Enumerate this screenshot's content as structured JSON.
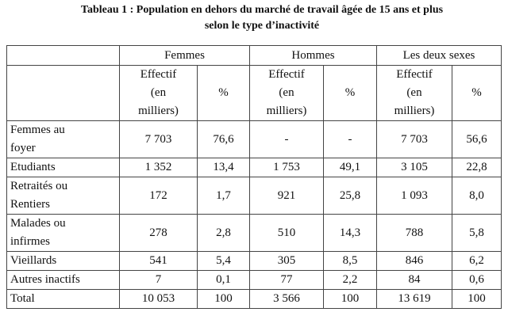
{
  "title": {
    "line1": "Tableau 1 : Population en dehors du marché de travail âgée de 15 ans et plus",
    "line2": "selon le type d’inactivité"
  },
  "groups": [
    "Femmes",
    "Hommes",
    "Les deux sexes"
  ],
  "subheaders": {
    "effectif": [
      "Effectif",
      "(en",
      "milliers)"
    ],
    "percent": "%"
  },
  "rows": [
    {
      "label": [
        "Femmes au",
        "foyer"
      ],
      "values": [
        "7 703",
        "76,6",
        "-",
        "-",
        "7 703",
        "56,6"
      ]
    },
    {
      "label": [
        "Etudiants"
      ],
      "values": [
        "1 352",
        "13,4",
        "1 753",
        "49,1",
        "3 105",
        "22,8"
      ]
    },
    {
      "label": [
        "Retraités ou",
        "Rentiers"
      ],
      "values": [
        "172",
        "1,7",
        "921",
        "25,8",
        "1 093",
        "8,0"
      ]
    },
    {
      "label": [
        "Malades ou",
        "infirmes"
      ],
      "values": [
        "278",
        "2,8",
        "510",
        "14,3",
        "788",
        "5,8"
      ]
    },
    {
      "label": [
        "Vieillards"
      ],
      "values": [
        "541",
        "5,4",
        "305",
        "8,5",
        "846",
        "6,2"
      ]
    },
    {
      "label": [
        "Autres inactifs"
      ],
      "values": [
        "7",
        "0,1",
        "77",
        "2,2",
        "84",
        "0,6"
      ]
    },
    {
      "label": [
        "Total"
      ],
      "values": [
        "10 053",
        "100",
        "3 566",
        "100",
        "13 619",
        "100"
      ]
    }
  ]
}
